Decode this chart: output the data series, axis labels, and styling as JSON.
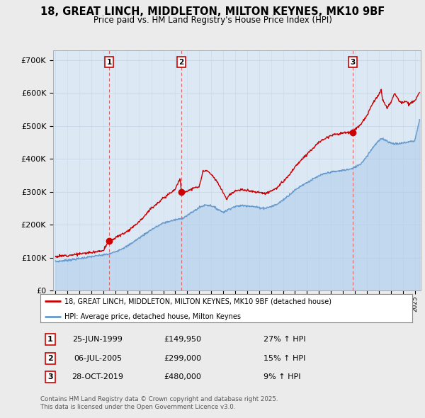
{
  "title": "18, GREAT LINCH, MIDDLETON, MILTON KEYNES, MK10 9BF",
  "subtitle": "Price paid vs. HM Land Registry's House Price Index (HPI)",
  "title_fontsize": 10.5,
  "subtitle_fontsize": 8.5,
  "background_color": "#ebebeb",
  "plot_bg_color": "#dce9f5",
  "ylabel": "",
  "xlabel": "",
  "ylim": [
    0,
    730000
  ],
  "yticks": [
    0,
    100000,
    200000,
    300000,
    400000,
    500000,
    600000,
    700000
  ],
  "ytick_labels": [
    "£0",
    "£100K",
    "£200K",
    "£300K",
    "£400K",
    "£500K",
    "£600K",
    "£700K"
  ],
  "sale_dates": [
    1999.48,
    2005.51,
    2019.83
  ],
  "sale_prices": [
    149950,
    299000,
    480000
  ],
  "sale_labels": [
    "1",
    "2",
    "3"
  ],
  "red_line_color": "#cc0000",
  "blue_line_color": "#6699cc",
  "blue_fill_color": "#aac8e8",
  "dashed_line_color": "#dd6666",
  "legend_label_red": "18, GREAT LINCH, MIDDLETON, MILTON KEYNES, MK10 9BF (detached house)",
  "legend_label_blue": "HPI: Average price, detached house, Milton Keynes",
  "table_rows": [
    {
      "num": "1",
      "date": "25-JUN-1999",
      "price": "£149,950",
      "change": "27% ↑ HPI"
    },
    {
      "num": "2",
      "date": "06-JUL-2005",
      "price": "£299,000",
      "change": "15% ↑ HPI"
    },
    {
      "num": "3",
      "date": "28-OCT-2019",
      "price": "£480,000",
      "change": "9% ↑ HPI"
    }
  ],
  "footer_text": "Contains HM Land Registry data © Crown copyright and database right 2025.\nThis data is licensed under the Open Government Licence v3.0.",
  "xmin": 1994.8,
  "xmax": 2025.5
}
